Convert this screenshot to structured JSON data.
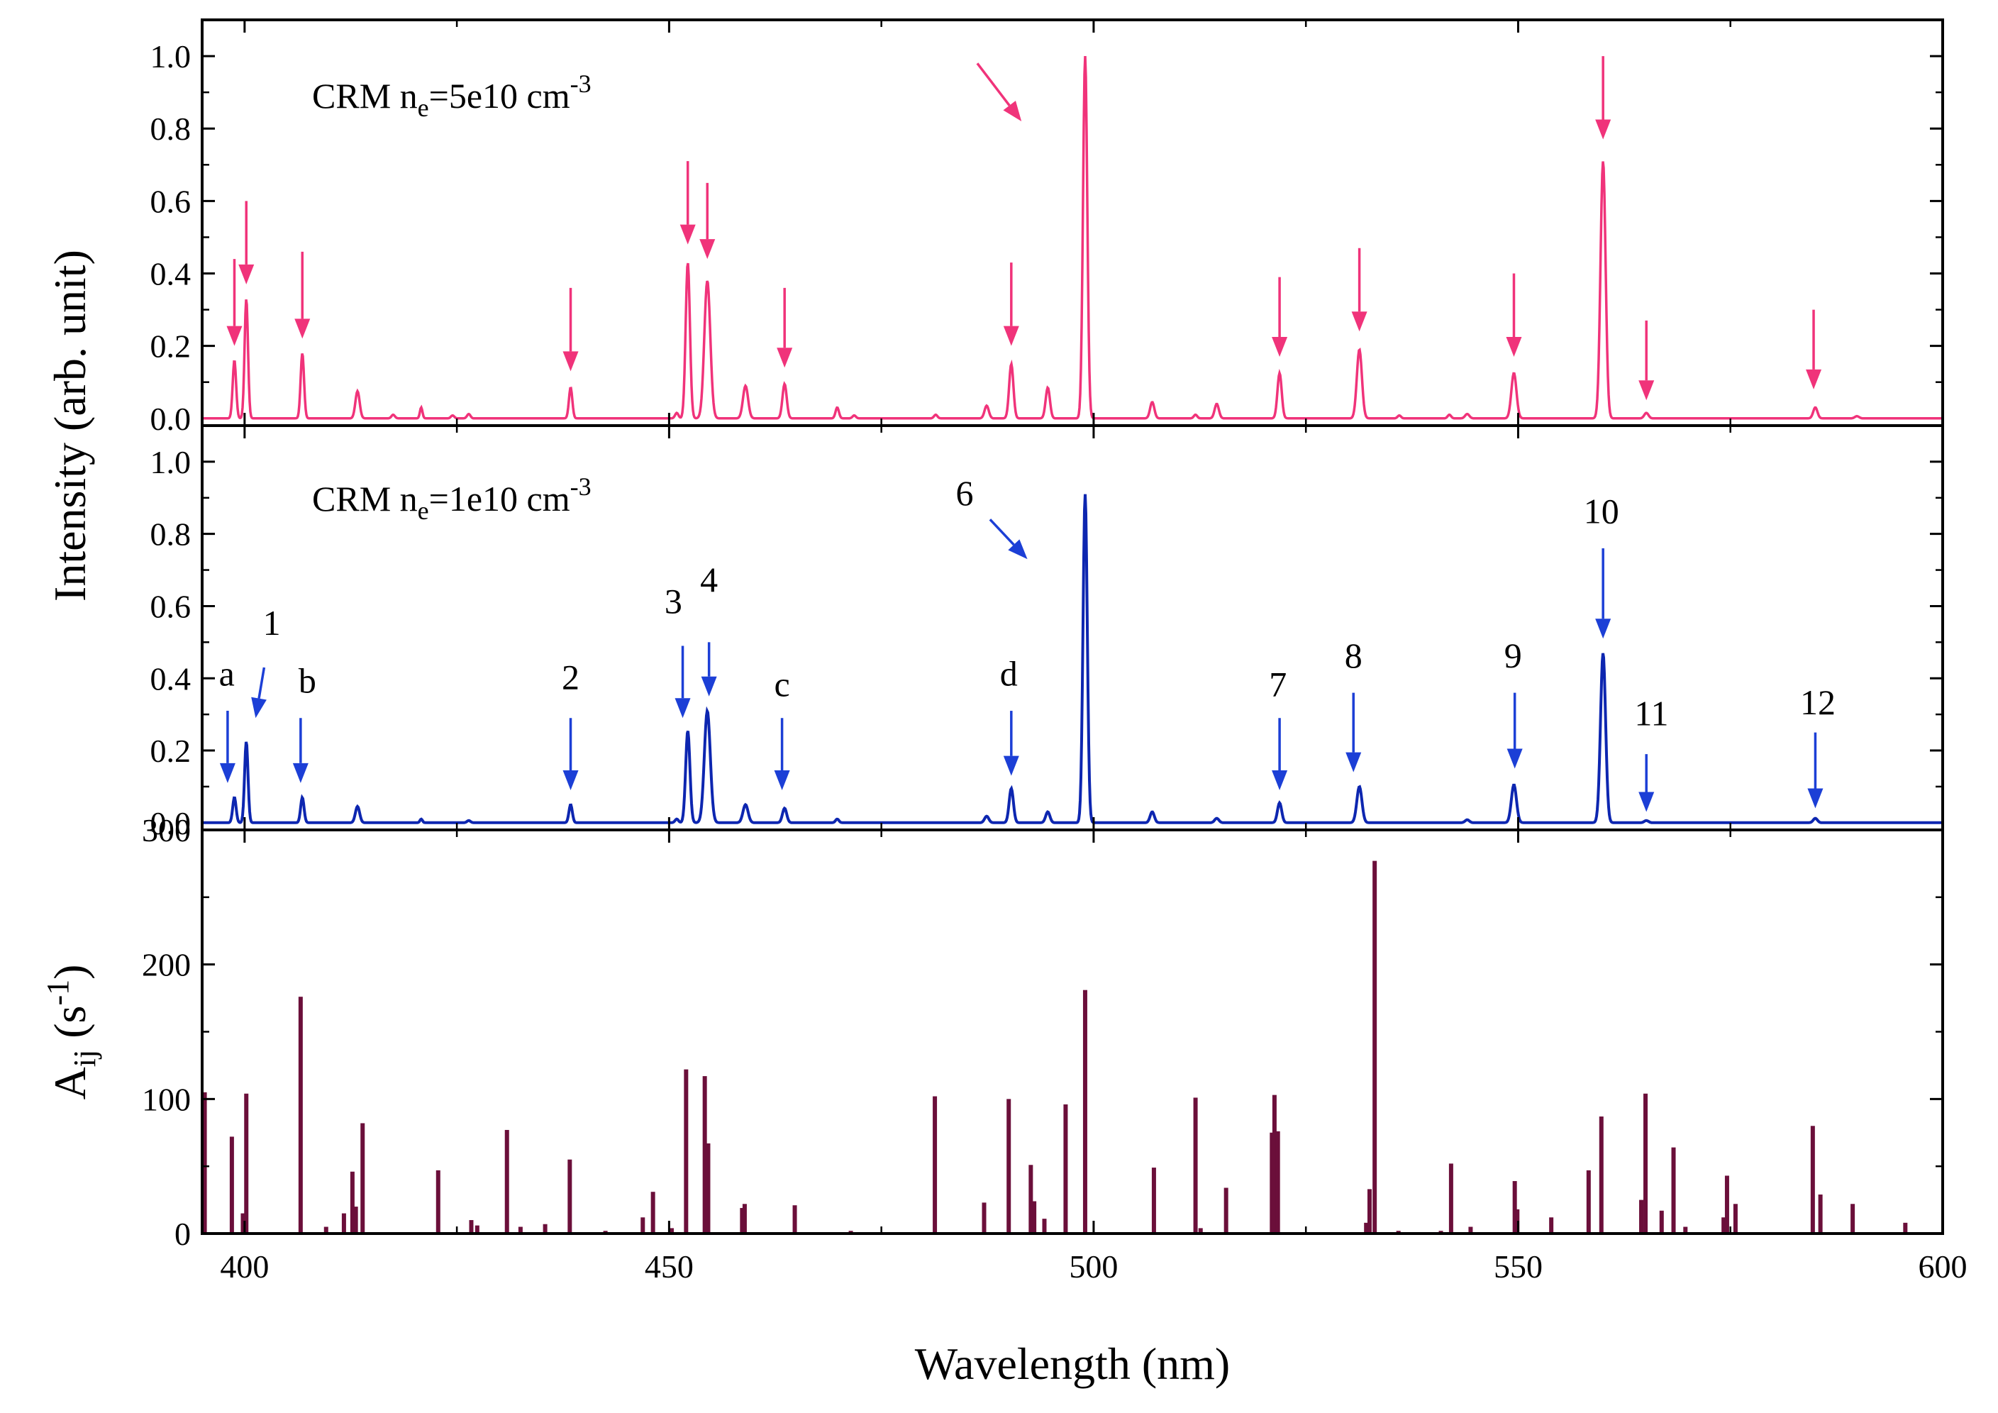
{
  "colors": {
    "panel_top": "#f0337a",
    "panel_middle": "#0d26b0",
    "panel_bottom": "#6b0f3a",
    "arrow_top": "#f0337a",
    "arrow_middle": "#1c3fd6",
    "axis": "#000000"
  },
  "labels": {
    "xlabel": "Wavelength (nm)",
    "ylabel_intensity": "Intensity (arb. unit)",
    "ylabel_aij_main": "A",
    "ylabel_aij_sub": "ij",
    "ylabel_aij_open": " (s",
    "ylabel_aij_sup": "-1",
    "ylabel_aij_close": ")",
    "top_panel_prefix": "CRM n",
    "top_panel_sub": "e",
    "top_panel_value": "=5e10 cm",
    "top_panel_sup": "-3",
    "middle_panel_prefix": "CRM n",
    "middle_panel_sub": "e",
    "middle_panel_value": "=1e10 cm",
    "middle_panel_sup": "-3"
  },
  "chart_data": [
    {
      "type": "line",
      "panel": "top",
      "series": [
        {
          "name": "CRM ne=5e10 cm-3"
        }
      ],
      "xlim": [
        395,
        600
      ],
      "ylim": [
        -0.02,
        1.1
      ],
      "yticks": [
        "0.0",
        "0.2",
        "0.4",
        "0.6",
        "0.8",
        "1.0"
      ],
      "ytick_values": [
        0.0,
        0.2,
        0.4,
        0.6,
        0.8,
        1.0
      ],
      "peaks": [
        {
          "x": 398.8,
          "y": 0.16,
          "w": 0.4
        },
        {
          "x": 400.2,
          "y": 0.33,
          "w": 0.4
        },
        {
          "x": 406.8,
          "y": 0.18,
          "w": 0.4
        },
        {
          "x": 413.3,
          "y": 0.075,
          "w": 0.5
        },
        {
          "x": 417.5,
          "y": 0.01,
          "w": 0.4
        },
        {
          "x": 420.8,
          "y": 0.03,
          "w": 0.3
        },
        {
          "x": 424.5,
          "y": 0.008,
          "w": 0.4
        },
        {
          "x": 426.4,
          "y": 0.012,
          "w": 0.4
        },
        {
          "x": 438.4,
          "y": 0.085,
          "w": 0.4
        },
        {
          "x": 450.9,
          "y": 0.015,
          "w": 0.4
        },
        {
          "x": 452.2,
          "y": 0.43,
          "w": 0.5
        },
        {
          "x": 454.5,
          "y": 0.38,
          "w": 0.7
        },
        {
          "x": 459.0,
          "y": 0.09,
          "w": 0.6
        },
        {
          "x": 463.6,
          "y": 0.095,
          "w": 0.5
        },
        {
          "x": 469.8,
          "y": 0.03,
          "w": 0.4
        },
        {
          "x": 471.8,
          "y": 0.008,
          "w": 0.4
        },
        {
          "x": 481.4,
          "y": 0.01,
          "w": 0.4
        },
        {
          "x": 487.4,
          "y": 0.035,
          "w": 0.5
        },
        {
          "x": 490.3,
          "y": 0.15,
          "w": 0.5
        },
        {
          "x": 494.6,
          "y": 0.085,
          "w": 0.5
        },
        {
          "x": 499.0,
          "y": 1.0,
          "w": 0.5
        },
        {
          "x": 506.9,
          "y": 0.045,
          "w": 0.5
        },
        {
          "x": 512.0,
          "y": 0.01,
          "w": 0.4
        },
        {
          "x": 514.5,
          "y": 0.04,
          "w": 0.5
        },
        {
          "x": 521.9,
          "y": 0.125,
          "w": 0.5
        },
        {
          "x": 531.3,
          "y": 0.19,
          "w": 0.6
        },
        {
          "x": 536.0,
          "y": 0.008,
          "w": 0.4
        },
        {
          "x": 541.9,
          "y": 0.01,
          "w": 0.4
        },
        {
          "x": 544.0,
          "y": 0.012,
          "w": 0.5
        },
        {
          "x": 549.5,
          "y": 0.125,
          "w": 0.6
        },
        {
          "x": 560.0,
          "y": 0.71,
          "w": 0.6
        },
        {
          "x": 565.1,
          "y": 0.015,
          "w": 0.5
        },
        {
          "x": 585.0,
          "y": 0.03,
          "w": 0.5
        },
        {
          "x": 589.9,
          "y": 0.006,
          "w": 0.5
        }
      ],
      "arrows": [
        {
          "x": 398.8,
          "y_tip": 0.2,
          "y_tail": 0.44
        },
        {
          "x": 400.2,
          "y_tip": 0.37,
          "y_tail": 0.6
        },
        {
          "x": 406.8,
          "y_tip": 0.22,
          "y_tail": 0.46
        },
        {
          "x": 438.4,
          "y_tip": 0.13,
          "y_tail": 0.36
        },
        {
          "x": 452.2,
          "y_tip": 0.48,
          "y_tail": 0.71
        },
        {
          "x": 454.5,
          "y_tip": 0.44,
          "y_tail": 0.65
        },
        {
          "x": 463.6,
          "y_tip": 0.14,
          "y_tail": 0.36
        },
        {
          "x": 490.3,
          "y_tip": 0.2,
          "y_tail": 0.43
        },
        {
          "x": 521.9,
          "y_tip": 0.17,
          "y_tail": 0.39
        },
        {
          "x": 531.3,
          "y_tip": 0.24,
          "y_tail": 0.47
        },
        {
          "x": 549.5,
          "y_tip": 0.17,
          "y_tail": 0.4
        },
        {
          "x": 560.0,
          "y_tip": 0.77,
          "y_tail": 1.0
        },
        {
          "x": 565.1,
          "y_tip": 0.05,
          "y_tail": 0.27
        },
        {
          "x": 584.8,
          "y_tip": 0.08,
          "y_tail": 0.3
        },
        {
          "x": 491.5,
          "y_tip": 0.82,
          "x_tail": 486.3,
          "y_tail_diag": 0.98
        }
      ]
    },
    {
      "type": "line",
      "panel": "middle",
      "series": [
        {
          "name": "CRM ne=1e10 cm-3"
        }
      ],
      "xlim": [
        395,
        600
      ],
      "ylim": [
        -0.02,
        1.1
      ],
      "yticks": [
        "0.0",
        "0.2",
        "0.4",
        "0.6",
        "0.8",
        "1.0"
      ],
      "ytick_values": [
        0.0,
        0.2,
        0.4,
        0.6,
        0.8,
        1.0
      ],
      "peaks": [
        {
          "x": 398.8,
          "y": 0.07,
          "w": 0.4
        },
        {
          "x": 400.2,
          "y": 0.225,
          "w": 0.4
        },
        {
          "x": 406.8,
          "y": 0.07,
          "w": 0.4
        },
        {
          "x": 413.3,
          "y": 0.045,
          "w": 0.5
        },
        {
          "x": 420.8,
          "y": 0.01,
          "w": 0.3
        },
        {
          "x": 426.4,
          "y": 0.006,
          "w": 0.4
        },
        {
          "x": 438.4,
          "y": 0.05,
          "w": 0.4
        },
        {
          "x": 450.9,
          "y": 0.01,
          "w": 0.4
        },
        {
          "x": 452.2,
          "y": 0.255,
          "w": 0.5
        },
        {
          "x": 454.5,
          "y": 0.31,
          "w": 0.7
        },
        {
          "x": 459.0,
          "y": 0.05,
          "w": 0.6
        },
        {
          "x": 463.6,
          "y": 0.04,
          "w": 0.5
        },
        {
          "x": 469.8,
          "y": 0.01,
          "w": 0.4
        },
        {
          "x": 487.4,
          "y": 0.018,
          "w": 0.5
        },
        {
          "x": 490.3,
          "y": 0.095,
          "w": 0.5
        },
        {
          "x": 494.6,
          "y": 0.03,
          "w": 0.5
        },
        {
          "x": 499.0,
          "y": 0.91,
          "w": 0.5
        },
        {
          "x": 506.9,
          "y": 0.03,
          "w": 0.5
        },
        {
          "x": 514.5,
          "y": 0.012,
          "w": 0.5
        },
        {
          "x": 521.9,
          "y": 0.055,
          "w": 0.5
        },
        {
          "x": 531.3,
          "y": 0.1,
          "w": 0.6
        },
        {
          "x": 544.0,
          "y": 0.008,
          "w": 0.5
        },
        {
          "x": 549.5,
          "y": 0.105,
          "w": 0.6
        },
        {
          "x": 560.0,
          "y": 0.47,
          "w": 0.6
        },
        {
          "x": 565.1,
          "y": 0.006,
          "w": 0.5
        },
        {
          "x": 585.0,
          "y": 0.012,
          "w": 0.5
        }
      ],
      "annotations": [
        {
          "text": "a",
          "x": 397.9,
          "y": 0.38,
          "ax": 398.0,
          "ay_tip": 0.11,
          "ay_tail": 0.31
        },
        {
          "text": "1",
          "x": 403.2,
          "y": 0.52,
          "ax": 401.3,
          "ay_tip": 0.29,
          "ay_tail": 0.43,
          "ax_tail": 402.3
        },
        {
          "text": "b",
          "x": 407.4,
          "y": 0.36,
          "ax": 406.6,
          "ay_tip": 0.11,
          "ay_tail": 0.29
        },
        {
          "text": "2",
          "x": 438.4,
          "y": 0.37,
          "ax": 438.4,
          "ay_tip": 0.09,
          "ay_tail": 0.29
        },
        {
          "text": "3",
          "x": 450.5,
          "y": 0.58,
          "ax": 451.6,
          "ay_tip": 0.29,
          "ay_tail": 0.49
        },
        {
          "text": "4",
          "x": 454.7,
          "y": 0.64,
          "ax": 454.7,
          "ay_tip": 0.35,
          "ay_tail": 0.5
        },
        {
          "text": "c",
          "x": 463.3,
          "y": 0.35,
          "ax": 463.3,
          "ay_tip": 0.09,
          "ay_tail": 0.29
        },
        {
          "text": "d",
          "x": 490.0,
          "y": 0.38,
          "ax": 490.3,
          "ay_tip": 0.13,
          "ay_tail": 0.31
        },
        {
          "text": "6",
          "x": 484.8,
          "y": 0.88,
          "ax": 492.2,
          "ay_tip": 0.73,
          "ay_tail": 0.84,
          "ax_tail": 487.8
        },
        {
          "text": "7",
          "x": 521.7,
          "y": 0.35,
          "ax": 521.9,
          "ay_tip": 0.09,
          "ay_tail": 0.29
        },
        {
          "text": "8",
          "x": 530.6,
          "y": 0.43,
          "ax": 530.6,
          "ay_tip": 0.14,
          "ay_tail": 0.36
        },
        {
          "text": "9",
          "x": 549.4,
          "y": 0.43,
          "ax": 549.6,
          "ay_tip": 0.15,
          "ay_tail": 0.36
        },
        {
          "text": "10",
          "x": 559.8,
          "y": 0.83,
          "ax": 560.0,
          "ay_tip": 0.51,
          "ay_tail": 0.76
        },
        {
          "text": "11",
          "x": 565.7,
          "y": 0.27,
          "ax": 565.1,
          "ay_tip": 0.03,
          "ay_tail": 0.19
        },
        {
          "text": "12",
          "x": 585.3,
          "y": 0.3,
          "ax": 585.0,
          "ay_tip": 0.04,
          "ay_tail": 0.25
        }
      ]
    },
    {
      "type": "bar",
      "panel": "bottom",
      "xlabel": "Wavelength (nm)",
      "ylabel": "Aij (s-1)",
      "xlim": [
        395,
        600
      ],
      "ylim": [
        0,
        300
      ],
      "xticks": [
        "400",
        "450",
        "500",
        "550",
        "600"
      ],
      "xtick_values": [
        400,
        450,
        500,
        550,
        600
      ],
      "yticks": [
        "0",
        "100",
        "200",
        "300"
      ],
      "ytick_values": [
        0,
        100,
        200,
        300
      ],
      "x": [
        395.3,
        398.5,
        399.8,
        400.2,
        406.6,
        409.6,
        411.7,
        412.7,
        413.1,
        413.9,
        422.8,
        426.7,
        427.4,
        430.9,
        432.5,
        435.4,
        438.3,
        442.5,
        446.9,
        448.1,
        450.3,
        452.0,
        454.2,
        454.6,
        458.6,
        458.9,
        464.8,
        471.4,
        481.3,
        487.1,
        490.0,
        492.6,
        493.0,
        494.2,
        496.7,
        499.0,
        507.1,
        512.0,
        512.6,
        515.6,
        521.0,
        521.3,
        521.7,
        532.1,
        532.5,
        533.1,
        535.9,
        540.9,
        542.1,
        544.4,
        549.6,
        549.9,
        553.9,
        558.3,
        559.8,
        564.5,
        565.0,
        566.9,
        568.3,
        569.7,
        574.2,
        574.6,
        575.6,
        584.7,
        585.6,
        589.4,
        595.6
      ],
      "values": [
        105,
        72,
        15,
        104,
        176,
        5,
        15,
        46,
        20,
        82,
        47,
        10,
        6,
        77,
        5,
        7,
        55,
        2,
        12,
        31,
        4,
        122,
        117,
        67,
        19,
        22,
        21,
        2,
        102,
        23,
        100,
        51,
        24,
        11,
        96,
        181,
        49,
        101,
        4,
        34,
        75,
        103,
        76,
        8,
        33,
        277,
        2,
        2,
        52,
        5,
        39,
        18,
        12,
        47,
        87,
        25,
        104,
        17,
        64,
        5,
        12,
        43,
        22,
        80,
        29,
        22,
        8
      ]
    }
  ]
}
